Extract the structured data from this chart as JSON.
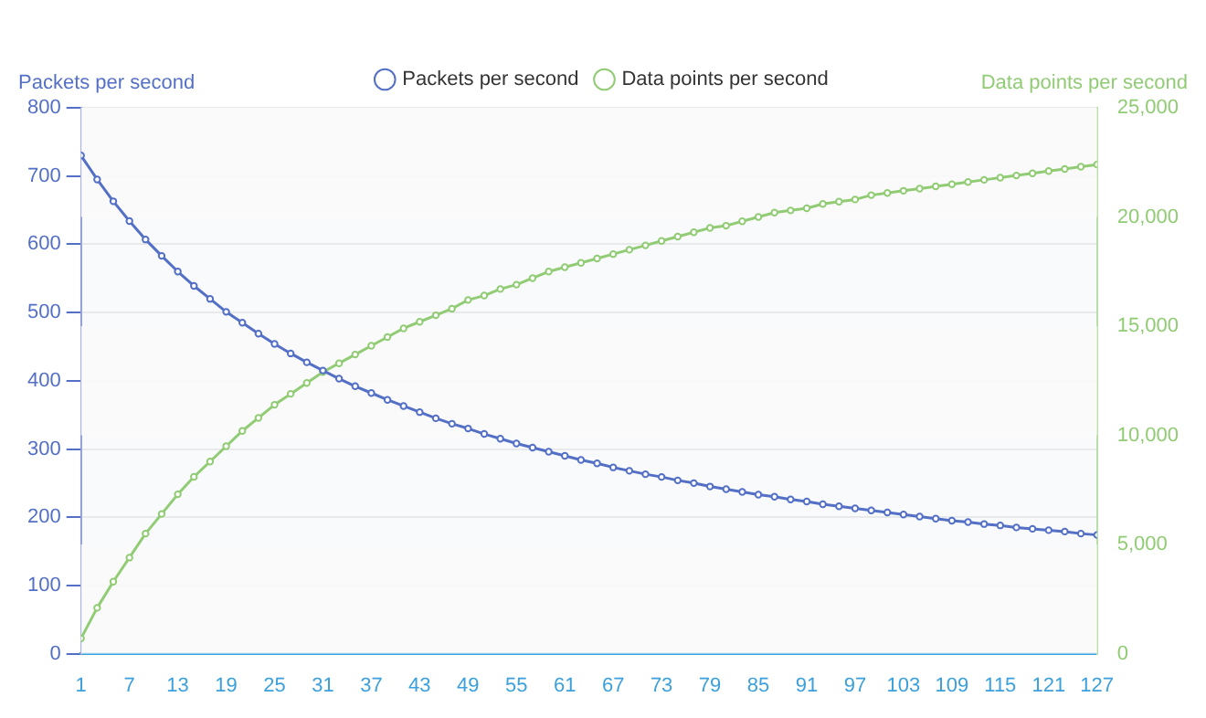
{
  "chart_data": {
    "type": "line",
    "ylabel": "Packets per second",
    "y2label": "Data points per second",
    "x": [
      1,
      3,
      5,
      7,
      9,
      11,
      13,
      15,
      17,
      19,
      21,
      23,
      25,
      27,
      29,
      31,
      33,
      35,
      37,
      39,
      41,
      43,
      45,
      47,
      49,
      51,
      53,
      55,
      57,
      59,
      61,
      63,
      65,
      67,
      69,
      71,
      73,
      75,
      77,
      79,
      81,
      83,
      85,
      87,
      89,
      91,
      93,
      95,
      97,
      99,
      101,
      103,
      105,
      107,
      109,
      111,
      113,
      115,
      117,
      119,
      121,
      123,
      125,
      127
    ],
    "series": [
      {
        "name": "Packets per second",
        "color": "#5470c6",
        "values": [
          730,
          695,
          663,
          634,
          607,
          583,
          560,
          539,
          520,
          501,
          485,
          469,
          454,
          440,
          427,
          415,
          403,
          392,
          382,
          372,
          363,
          354,
          345,
          337,
          330,
          322,
          315,
          308,
          302,
          296,
          290,
          284,
          279,
          273,
          268,
          263,
          259,
          254,
          250,
          245,
          241,
          237,
          233,
          230,
          226,
          223,
          219,
          216,
          213,
          210,
          207,
          204,
          201,
          198,
          195,
          193,
          190,
          188,
          185,
          183,
          181,
          179,
          176,
          174
        ]
      },
      {
        "name": "Data points per second",
        "color": "#91cc75",
        "axis": "y2",
        "values": [
          700,
          2100,
          3300,
          4400,
          5500,
          6400,
          7300,
          8100,
          8800,
          9500,
          10200,
          10800,
          11400,
          11900,
          12400,
          12900,
          13300,
          13700,
          14100,
          14500,
          14900,
          15200,
          15500,
          15800,
          16200,
          16400,
          16700,
          16900,
          17200,
          17500,
          17700,
          17900,
          18100,
          18300,
          18500,
          18700,
          18900,
          19100,
          19300,
          19500,
          19600,
          19800,
          20000,
          20200,
          20300,
          20400,
          20600,
          20700,
          20800,
          21000,
          21100,
          21200,
          21300,
          21400,
          21500,
          21600,
          21700,
          21800,
          21900,
          22000,
          22100,
          22200,
          22300,
          22400
        ]
      }
    ],
    "xlim": [
      1,
      127
    ],
    "xticks": [
      1,
      7,
      13,
      19,
      25,
      31,
      37,
      43,
      49,
      55,
      61,
      67,
      73,
      79,
      85,
      91,
      97,
      103,
      109,
      115,
      121,
      127
    ],
    "ylim": [
      0,
      800
    ],
    "yticks": [
      0,
      100,
      200,
      300,
      400,
      500,
      600,
      700,
      800
    ],
    "y2lim": [
      0,
      25000
    ],
    "y2ticks": [
      0,
      {
        "value": 5000,
        "label": "5,000"
      },
      {
        "value": 10000,
        "label": "10,000"
      },
      {
        "value": 15000,
        "label": "15,000"
      },
      {
        "value": 20000,
        "label": "20,000"
      },
      {
        "value": 25000,
        "label": "25,000"
      }
    ],
    "grid": "y",
    "legend": "top",
    "marker": "circle",
    "line_style": "solid"
  }
}
